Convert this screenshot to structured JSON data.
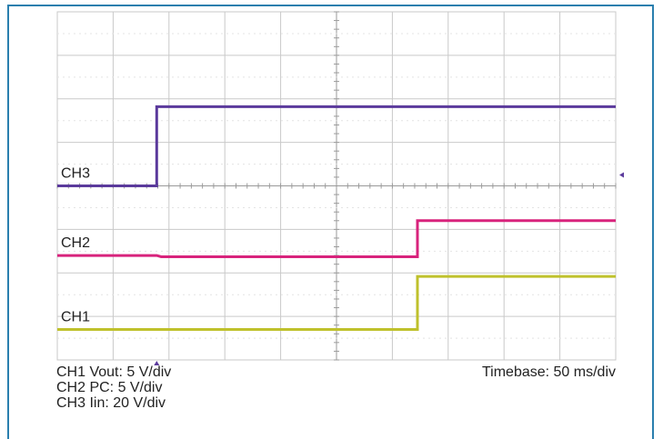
{
  "chart_data": {
    "type": "line",
    "title": "",
    "grid": true,
    "x_divisions": 10,
    "y_divisions": 8,
    "ylim_div": [
      0,
      8
    ],
    "series": [
      {
        "name": "CH3",
        "color": "#5b3a9c",
        "points": [
          [
            0,
            4.0
          ],
          [
            1.78,
            4.0
          ],
          [
            1.78,
            5.82
          ],
          [
            10,
            5.82
          ]
        ]
      },
      {
        "name": "CH2",
        "color": "#d8237c",
        "points": [
          [
            0,
            2.4
          ],
          [
            1.78,
            2.4
          ],
          [
            1.86,
            2.37
          ],
          [
            6.45,
            2.37
          ],
          [
            6.45,
            3.2
          ],
          [
            10,
            3.2
          ]
        ]
      },
      {
        "name": "CH1",
        "color": "#bfc12c",
        "points": [
          [
            0,
            0.7
          ],
          [
            6.45,
            0.7
          ],
          [
            6.45,
            1.92
          ],
          [
            10,
            1.92
          ]
        ]
      }
    ],
    "trigger_marker_x_div": 1.78,
    "level_marker_y_div": 4.0,
    "footer": {
      "ch1": "CH1 Vout: 5 V/div",
      "ch2": "CH2 PC: 5 V/div",
      "ch3": "CH3 Iin: 20 V/div",
      "timebase": "Timebase: 50 ms/div"
    }
  }
}
